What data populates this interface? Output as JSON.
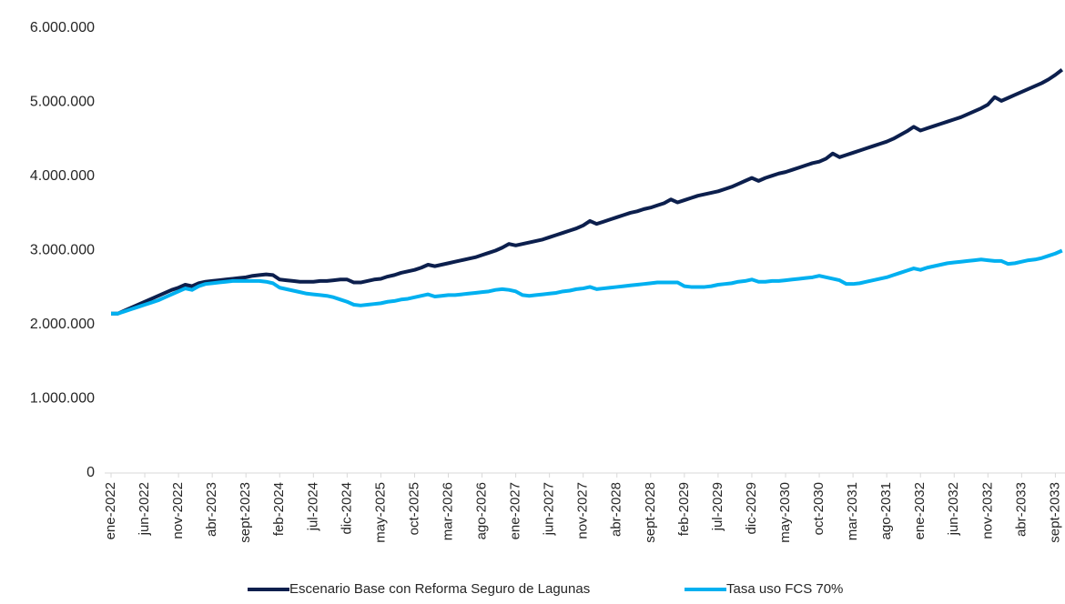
{
  "chart_data": {
    "type": "line",
    "categories": [
      "ene-2022",
      null,
      null,
      null,
      null,
      "jun-2022",
      null,
      null,
      null,
      null,
      "nov-2022",
      null,
      null,
      null,
      null,
      "abr-2023",
      null,
      null,
      null,
      null,
      "sept-2023",
      null,
      null,
      null,
      null,
      "feb-2024",
      null,
      null,
      null,
      null,
      "jul-2024",
      null,
      null,
      null,
      null,
      "dic-2024",
      null,
      null,
      null,
      null,
      "may-2025",
      null,
      null,
      null,
      null,
      "oct-2025",
      null,
      null,
      null,
      null,
      "mar-2026",
      null,
      null,
      null,
      null,
      "ago-2026",
      null,
      null,
      null,
      null,
      "ene-2027",
      null,
      null,
      null,
      null,
      "jun-2027",
      null,
      null,
      null,
      null,
      "nov-2027",
      null,
      null,
      null,
      null,
      "abr-2028",
      null,
      null,
      null,
      null,
      "sept-2028",
      null,
      null,
      null,
      null,
      "feb-2029",
      null,
      null,
      null,
      null,
      "jul-2029",
      null,
      null,
      null,
      null,
      "dic-2029",
      null,
      null,
      null,
      null,
      "may-2030",
      null,
      null,
      null,
      null,
      "oct-2030",
      null,
      null,
      null,
      null,
      "mar-2031",
      null,
      null,
      null,
      null,
      "ago-2031",
      null,
      null,
      null,
      null,
      "ene-2032",
      null,
      null,
      null,
      null,
      "jun-2032",
      null,
      null,
      null,
      null,
      "nov-2032",
      null,
      null,
      null,
      null,
      "abr-2033",
      null,
      null,
      null,
      null,
      "sept-2033",
      null
    ],
    "series": [
      {
        "name": "Escenario Base con Reforma Seguro de Lagunas",
        "color": "#0c1f4d",
        "values": [
          2150000,
          2150000,
          2190000,
          2230000,
          2270000,
          2310000,
          2350000,
          2390000,
          2430000,
          2470000,
          2500000,
          2540000,
          2520000,
          2560000,
          2580000,
          2590000,
          2600000,
          2610000,
          2620000,
          2630000,
          2640000,
          2660000,
          2670000,
          2680000,
          2670000,
          2610000,
          2600000,
          2590000,
          2580000,
          2580000,
          2580000,
          2590000,
          2590000,
          2600000,
          2610000,
          2610000,
          2570000,
          2570000,
          2590000,
          2610000,
          2620000,
          2650000,
          2670000,
          2700000,
          2720000,
          2740000,
          2770000,
          2810000,
          2790000,
          2810000,
          2830000,
          2850000,
          2870000,
          2890000,
          2910000,
          2940000,
          2970000,
          3000000,
          3040000,
          3090000,
          3070000,
          3090000,
          3110000,
          3130000,
          3150000,
          3180000,
          3210000,
          3240000,
          3270000,
          3300000,
          3340000,
          3400000,
          3360000,
          3390000,
          3420000,
          3450000,
          3480000,
          3510000,
          3530000,
          3560000,
          3580000,
          3610000,
          3640000,
          3690000,
          3650000,
          3680000,
          3710000,
          3740000,
          3760000,
          3780000,
          3800000,
          3830000,
          3860000,
          3900000,
          3940000,
          3980000,
          3940000,
          3980000,
          4010000,
          4040000,
          4060000,
          4090000,
          4120000,
          4150000,
          4180000,
          4200000,
          4240000,
          4310000,
          4260000,
          4290000,
          4320000,
          4350000,
          4380000,
          4410000,
          4440000,
          4470000,
          4510000,
          4560000,
          4610000,
          4670000,
          4620000,
          4650000,
          4680000,
          4710000,
          4740000,
          4770000,
          4800000,
          4840000,
          4880000,
          4920000,
          4970000,
          5070000,
          5020000,
          5060000,
          5100000,
          5140000,
          5180000,
          5220000,
          5260000,
          5310000,
          5370000,
          5440000
        ]
      },
      {
        "name": "Tasa uso FCS 70%",
        "color": "#00b0f0",
        "values": [
          2150000,
          2150000,
          2180000,
          2210000,
          2240000,
          2270000,
          2300000,
          2330000,
          2370000,
          2410000,
          2450000,
          2490000,
          2470000,
          2520000,
          2550000,
          2560000,
          2570000,
          2580000,
          2590000,
          2590000,
          2590000,
          2590000,
          2590000,
          2580000,
          2560000,
          2500000,
          2480000,
          2460000,
          2440000,
          2420000,
          2410000,
          2400000,
          2390000,
          2370000,
          2340000,
          2310000,
          2270000,
          2260000,
          2270000,
          2280000,
          2290000,
          2310000,
          2320000,
          2340000,
          2350000,
          2370000,
          2390000,
          2410000,
          2380000,
          2390000,
          2400000,
          2400000,
          2410000,
          2420000,
          2430000,
          2440000,
          2450000,
          2470000,
          2480000,
          2470000,
          2450000,
          2400000,
          2390000,
          2400000,
          2410000,
          2420000,
          2430000,
          2450000,
          2460000,
          2480000,
          2490000,
          2510000,
          2480000,
          2490000,
          2500000,
          2510000,
          2520000,
          2530000,
          2540000,
          2550000,
          2560000,
          2570000,
          2570000,
          2570000,
          2570000,
          2520000,
          2510000,
          2510000,
          2510000,
          2520000,
          2540000,
          2550000,
          2560000,
          2580000,
          2590000,
          2610000,
          2580000,
          2580000,
          2590000,
          2590000,
          2600000,
          2610000,
          2620000,
          2630000,
          2640000,
          2660000,
          2640000,
          2620000,
          2600000,
          2550000,
          2550000,
          2560000,
          2580000,
          2600000,
          2620000,
          2640000,
          2670000,
          2700000,
          2730000,
          2760000,
          2740000,
          2770000,
          2790000,
          2810000,
          2830000,
          2840000,
          2850000,
          2860000,
          2870000,
          2880000,
          2870000,
          2860000,
          2860000,
          2820000,
          2830000,
          2850000,
          2870000,
          2880000,
          2900000,
          2930000,
          2960000,
          3000000
        ]
      }
    ],
    "ylim": [
      0,
      6000000
    ],
    "yticks": [
      0,
      {
        "value": 1000000,
        "label": "1.000.000"
      },
      {
        "value": 2000000,
        "label": "2.000.000"
      },
      {
        "value": 3000000,
        "label": "3.000.000"
      },
      {
        "value": 4000000,
        "label": "4.000.000"
      },
      {
        "value": 5000000,
        "label": "5.000.000"
      },
      {
        "value": 6000000,
        "label": "6.000.000"
      }
    ],
    "grid": false,
    "legend": "bottom"
  }
}
